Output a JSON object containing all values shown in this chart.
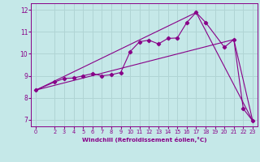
{
  "xlabel": "Windchill (Refroidissement éolien,°C)",
  "xlim": [
    -0.5,
    23.5
  ],
  "ylim": [
    6.7,
    12.3
  ],
  "xticks": [
    0,
    2,
    3,
    4,
    5,
    6,
    7,
    8,
    9,
    10,
    11,
    12,
    13,
    14,
    15,
    16,
    17,
    18,
    19,
    20,
    21,
    22,
    23
  ],
  "yticks": [
    7,
    8,
    9,
    10,
    11,
    12
  ],
  "bg_color": "#c5e8e8",
  "line_color": "#880088",
  "grid_color": "#b0d4d4",
  "line1_x": [
    0,
    2,
    3,
    4,
    5,
    6,
    7,
    8,
    9,
    10,
    11,
    12,
    13,
    14,
    15,
    16,
    17,
    18,
    20,
    21,
    22,
    23
  ],
  "line1_y": [
    8.35,
    8.72,
    8.88,
    8.9,
    9.0,
    9.1,
    9.0,
    9.05,
    9.15,
    10.1,
    10.55,
    10.62,
    10.45,
    10.7,
    10.72,
    11.42,
    11.88,
    11.43,
    10.3,
    10.65,
    7.5,
    6.95
  ],
  "line2_x": [
    0,
    21,
    23
  ],
  "line2_y": [
    8.35,
    10.65,
    6.95
  ],
  "line3_x": [
    0,
    17,
    23
  ],
  "line3_y": [
    8.35,
    11.88,
    6.95
  ]
}
